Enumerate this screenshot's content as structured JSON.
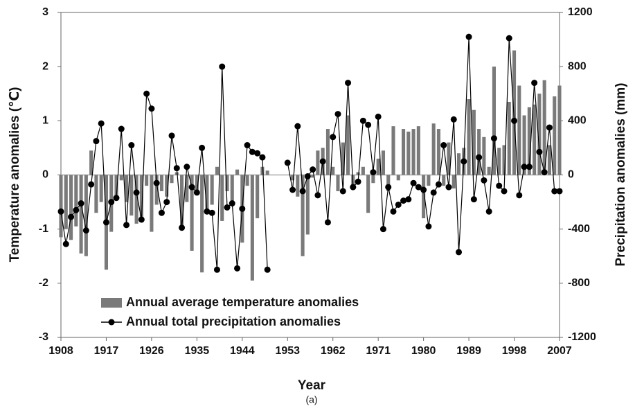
{
  "chart_data": {
    "type": "bar",
    "caption": "(a)",
    "xlabel": "Year",
    "ylabel": "Temperature anomalies (℃)",
    "y2label": "Precipitation anomalies (mm)",
    "x": [
      1908,
      1909,
      1910,
      1911,
      1912,
      1913,
      1914,
      1915,
      1916,
      1917,
      1918,
      1919,
      1920,
      1921,
      1922,
      1923,
      1924,
      1925,
      1926,
      1927,
      1928,
      1929,
      1930,
      1931,
      1932,
      1933,
      1934,
      1935,
      1936,
      1937,
      1938,
      1939,
      1940,
      1941,
      1942,
      1943,
      1944,
      1945,
      1946,
      1947,
      1948,
      1949,
      1950,
      1951,
      1952,
      1953,
      1954,
      1955,
      1956,
      1957,
      1958,
      1959,
      1960,
      1961,
      1962,
      1963,
      1964,
      1965,
      1966,
      1967,
      1968,
      1969,
      1970,
      1971,
      1972,
      1973,
      1974,
      1975,
      1976,
      1977,
      1978,
      1979,
      1980,
      1981,
      1982,
      1983,
      1984,
      1985,
      1986,
      1987,
      1988,
      1989,
      1990,
      1991,
      1992,
      1993,
      1994,
      1995,
      1996,
      1997,
      1998,
      1999,
      2000,
      2001,
      2002,
      2003,
      2004,
      2005,
      2006,
      2007
    ],
    "series": [
      {
        "name": "Annual average temperature anomalies",
        "type": "bar",
        "color": "#7a7a7a",
        "values": [
          -1.15,
          -1.0,
          -1.2,
          -0.95,
          -1.45,
          -1.5,
          0.45,
          -0.7,
          -0.5,
          -1.75,
          -1.05,
          -0.4,
          -0.1,
          -0.5,
          -0.75,
          -0.9,
          -0.85,
          -0.2,
          -1.05,
          -0.55,
          -0.3,
          -0.4,
          -0.15,
          0.05,
          -1.0,
          -0.5,
          -1.4,
          -0.3,
          -1.8,
          -0.65,
          -0.55,
          0.15,
          -0.85,
          -0.3,
          -0.5,
          0.1,
          -1.25,
          -0.2,
          -1.95,
          -0.8,
          0.15,
          0.08,
          null,
          null,
          null,
          null,
          -0.1,
          -0.4,
          -1.5,
          -1.1,
          -0.05,
          0.45,
          0.5,
          0.85,
          0.15,
          -0.3,
          0.6,
          1.1,
          -0.2,
          0.05,
          0.15,
          -0.7,
          -0.15,
          0.3,
          0.45,
          -0.3,
          0.9,
          -0.1,
          0.85,
          0.8,
          0.85,
          0.9,
          -0.8,
          -0.2,
          0.95,
          0.85,
          -0.2,
          0.6,
          -0.25,
          0.4,
          0.5,
          1.4,
          1.2,
          0.85,
          0.7,
          0.15,
          2.0,
          0.5,
          0.55,
          1.35,
          2.3,
          1.65,
          1.1,
          1.25,
          1.3,
          1.5,
          1.75,
          0.55,
          1.45,
          1.65
        ]
      },
      {
        "name": "Annual total precipitation anomalies",
        "type": "line",
        "axis": "y2",
        "color": "#000000",
        "values": [
          -270,
          -510,
          -310,
          -260,
          -210,
          -410,
          -70,
          250,
          380,
          -350,
          -200,
          -170,
          340,
          -370,
          220,
          -130,
          -330,
          600,
          490,
          -60,
          -280,
          -200,
          290,
          50,
          -390,
          60,
          -90,
          -130,
          200,
          -270,
          -280,
          -700,
          800,
          -240,
          -210,
          -690,
          -250,
          220,
          170,
          160,
          130,
          -700,
          null,
          null,
          null,
          90,
          -110,
          360,
          -120,
          -10,
          40,
          -150,
          100,
          -350,
          280,
          450,
          -120,
          680,
          -90,
          -50,
          400,
          370,
          20,
          430,
          -400,
          -90,
          -270,
          -220,
          -190,
          -180,
          -60,
          -90,
          -110,
          -380,
          -130,
          -70,
          220,
          -90,
          410,
          -570,
          100,
          1020,
          -180,
          130,
          -40,
          -270,
          270,
          -80,
          -120,
          1010,
          400,
          -150,
          60,
          60,
          680,
          170,
          20,
          350,
          -120,
          -120
        ]
      }
    ],
    "xlim": [
      1908,
      2007
    ],
    "xticks": [
      1908,
      1917,
      1926,
      1935,
      1944,
      1953,
      1962,
      1971,
      1980,
      1989,
      1998,
      2007
    ],
    "ylim": [
      -3,
      3
    ],
    "yticks": [
      -3,
      -2,
      -1,
      0,
      1,
      2,
      3
    ],
    "y2lim": [
      -1200,
      1200
    ],
    "y2ticks": [
      -1200,
      -800,
      -400,
      0,
      400,
      800,
      1200
    ],
    "legend": "lower left"
  }
}
